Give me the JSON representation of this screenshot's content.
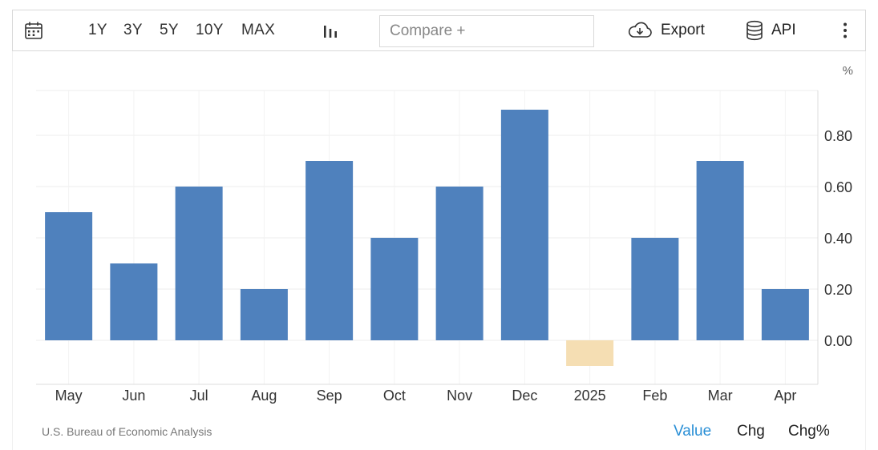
{
  "toolbar": {
    "calendar_icon": "calendar-icon",
    "ranges": [
      "1Y",
      "3Y",
      "5Y",
      "10Y",
      "MAX"
    ],
    "chart_type_icon": "bar-chart-icon",
    "compare_placeholder": "Compare +",
    "export_icon": "cloud-download-icon",
    "export_label": "Export",
    "api_icon": "database-icon",
    "api_label": "API",
    "more_icon": "vertical-dots-icon"
  },
  "chart_data": {
    "type": "bar",
    "categories": [
      "May",
      "Jun",
      "Jul",
      "Aug",
      "Sep",
      "Oct",
      "Nov",
      "Dec",
      "2025",
      "Feb",
      "Mar",
      "Apr"
    ],
    "values": [
      0.5,
      0.3,
      0.6,
      0.2,
      0.7,
      0.4,
      0.6,
      0.9,
      -0.1,
      0.4,
      0.7,
      0.2
    ],
    "unit": "%",
    "yticks": [
      "0.80",
      "0.60",
      "0.40",
      "0.20",
      "0.00"
    ],
    "ylim": [
      -0.18,
      0.98
    ],
    "y_axis_side": "right",
    "grid": true,
    "colors": {
      "positive": "#4f81bd",
      "negative": "#f5deb3"
    }
  },
  "footer": {
    "source": "U.S. Bureau of Economic Analysis",
    "tabs": [
      "Value",
      "Chg",
      "Chg%"
    ],
    "active_tab_color": "#2a8fd6"
  }
}
